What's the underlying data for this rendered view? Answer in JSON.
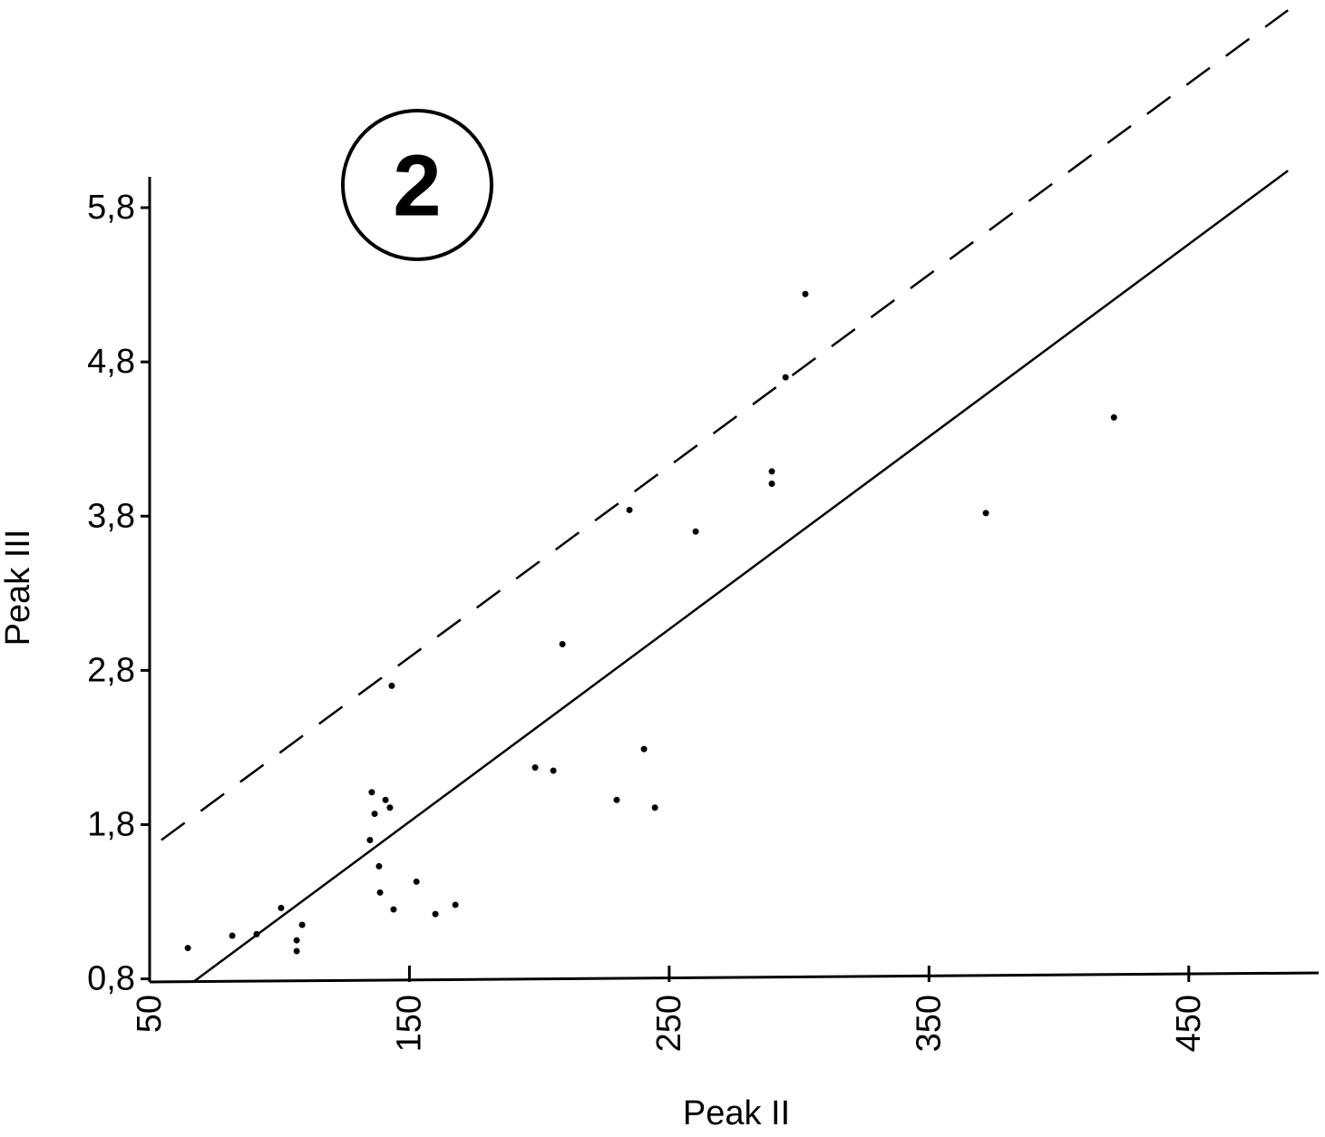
{
  "chart_data": {
    "type": "scatter",
    "annotation": "2",
    "xlabel": "Peak II",
    "ylabel": "Peak III",
    "xlim": [
      50,
      500
    ],
    "ylim": [
      0.78,
      6.0
    ],
    "xticks": [
      50,
      150,
      250,
      350,
      450
    ],
    "yticks": [
      {
        "value": 0.8,
        "label": "0,8"
      },
      {
        "value": 1.8,
        "label": "1,8"
      },
      {
        "value": 2.8,
        "label": "2,8"
      },
      {
        "value": 3.8,
        "label": "3,8"
      },
      {
        "value": 4.8,
        "label": "4,8"
      },
      {
        "value": 5.8,
        "label": "5,8"
      }
    ],
    "color": "#000000",
    "x": [
      64.7,
      81.8,
      91.2,
      100.6,
      106.6,
      106.6,
      108.7,
      135.5,
      136.6,
      134.8,
      138.3,
      138.7,
      140.8,
      142.5,
      143.2,
      143.9,
      152.7,
      160.0,
      167.7,
      198.4,
      205.4,
      208.9,
      229.8,
      234.7,
      240.3,
      244.5,
      260.2,
      289.5,
      289.5,
      294.8,
      302.4,
      371.9,
      421.2
    ],
    "values": [
      1.0,
      1.08,
      1.09,
      1.26,
      1.05,
      0.98,
      1.15,
      2.01,
      1.87,
      1.7,
      1.53,
      1.36,
      1.96,
      1.91,
      2.7,
      1.25,
      1.43,
      1.22,
      1.28,
      2.17,
      2.15,
      2.97,
      1.96,
      3.84,
      2.29,
      1.91,
      3.7,
      4.09,
      4.01,
      4.7,
      5.24,
      3.82,
      4.44
    ],
    "fit_lines": [
      {
        "style": "solid",
        "x": [
          66.8,
          488.2
        ],
        "y": [
          0.78,
          6.04
        ]
      },
      {
        "style": "dashed",
        "x": [
          54.5,
          488.2
        ],
        "y": [
          1.7,
          7.08
        ]
      }
    ]
  }
}
